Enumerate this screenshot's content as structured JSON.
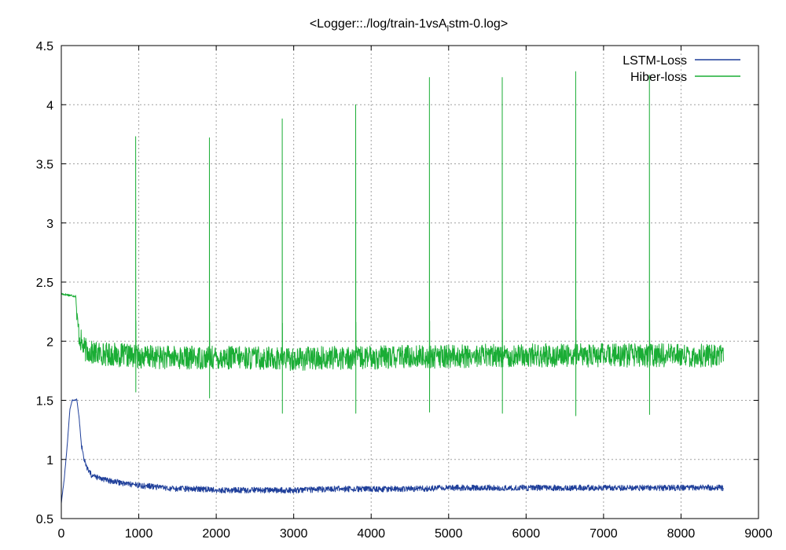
{
  "chart_data": {
    "type": "line",
    "title": "<Logger::./log/train-1vsA",
    "title_subscript": "l",
    "title_suffix": "stm-0.log>",
    "xlabel": "",
    "ylabel": "",
    "xlim": [
      0,
      9000
    ],
    "ylim": [
      0.5,
      4.5
    ],
    "xticks": [
      0,
      1000,
      2000,
      3000,
      4000,
      5000,
      6000,
      7000,
      8000,
      9000
    ],
    "yticks": [
      0.5,
      1,
      1.5,
      2,
      2.5,
      3,
      3.5,
      4,
      4.5
    ],
    "grid": true,
    "legend_position": "top-right",
    "series": [
      {
        "name": "LSTM-Loss",
        "color": "#1f3f9a",
        "points": [
          [
            0,
            0.63
          ],
          [
            40,
            0.85
          ],
          [
            80,
            1.15
          ],
          [
            110,
            1.42
          ],
          [
            140,
            1.5
          ],
          [
            170,
            1.5
          ],
          [
            200,
            1.51
          ],
          [
            230,
            1.35
          ],
          [
            260,
            1.12
          ],
          [
            300,
            0.98
          ],
          [
            350,
            0.9
          ],
          [
            400,
            0.86
          ],
          [
            500,
            0.84
          ],
          [
            600,
            0.82
          ],
          [
            700,
            0.81
          ],
          [
            800,
            0.8
          ],
          [
            900,
            0.79
          ],
          [
            1000,
            0.78
          ],
          [
            1200,
            0.77
          ],
          [
            1400,
            0.75
          ],
          [
            1600,
            0.75
          ],
          [
            1800,
            0.75
          ],
          [
            2000,
            0.74
          ],
          [
            2500,
            0.74
          ],
          [
            3000,
            0.74
          ],
          [
            3500,
            0.75
          ],
          [
            4000,
            0.75
          ],
          [
            4500,
            0.75
          ],
          [
            5000,
            0.76
          ],
          [
            5500,
            0.76
          ],
          [
            6000,
            0.76
          ],
          [
            6500,
            0.76
          ],
          [
            7000,
            0.76
          ],
          [
            7500,
            0.76
          ],
          [
            8000,
            0.76
          ],
          [
            8550,
            0.76
          ]
        ],
        "noise_amplitude": 0.025
      },
      {
        "name": "Hiber-loss",
        "color": "#1aad35",
        "points": [
          [
            0,
            2.4
          ],
          [
            100,
            2.39
          ],
          [
            190,
            2.38
          ],
          [
            200,
            2.2
          ],
          [
            230,
            2.05
          ],
          [
            270,
            1.97
          ],
          [
            300,
            1.93
          ],
          [
            400,
            1.9
          ],
          [
            600,
            1.89
          ],
          [
            800,
            1.88
          ],
          [
            1000,
            1.87
          ],
          [
            1500,
            1.86
          ],
          [
            2000,
            1.86
          ],
          [
            2500,
            1.86
          ],
          [
            3000,
            1.85
          ],
          [
            3500,
            1.86
          ],
          [
            4000,
            1.86
          ],
          [
            4500,
            1.87
          ],
          [
            5000,
            1.87
          ],
          [
            5500,
            1.88
          ],
          [
            6000,
            1.88
          ],
          [
            6500,
            1.88
          ],
          [
            7000,
            1.88
          ],
          [
            7500,
            1.88
          ],
          [
            8000,
            1.88
          ],
          [
            8550,
            1.88
          ]
        ],
        "noise_amplitude": 0.1,
        "spikes": [
          {
            "x": 960,
            "high": 3.73,
            "low": 1.57
          },
          {
            "x": 1910,
            "high": 3.72,
            "low": 1.52
          },
          {
            "x": 2850,
            "high": 3.88,
            "low": 1.39
          },
          {
            "x": 3800,
            "high": 4.0,
            "low": 1.39
          },
          {
            "x": 4750,
            "high": 4.23,
            "low": 1.4
          },
          {
            "x": 5690,
            "high": 4.23,
            "low": 1.39
          },
          {
            "x": 6640,
            "high": 4.28,
            "low": 1.37
          },
          {
            "x": 7590,
            "high": 4.25,
            "low": 1.38
          }
        ]
      }
    ]
  }
}
